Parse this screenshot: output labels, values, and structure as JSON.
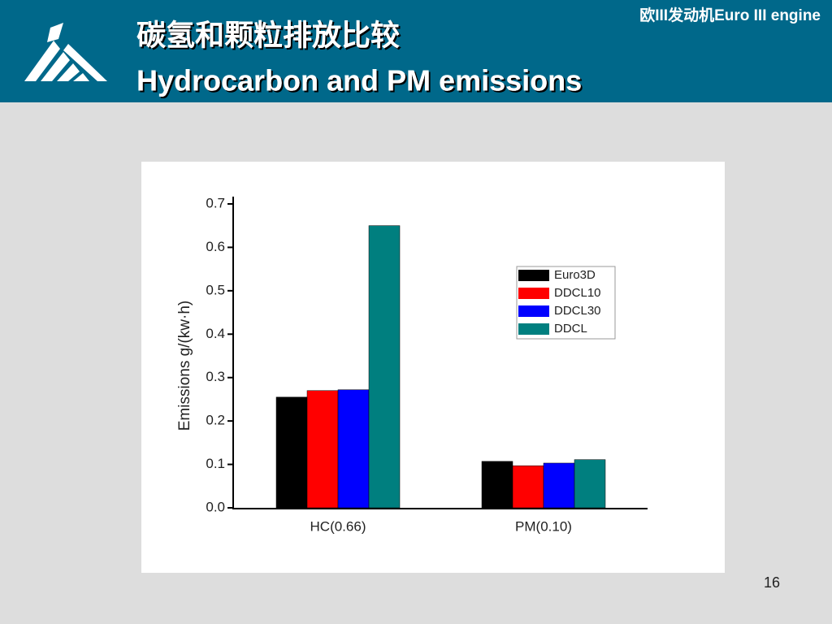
{
  "slide": {
    "corner": "欧III发动机Euro III engine",
    "title_cn": "碳氢和颗粒排放比较",
    "title_en": "Hydrocarbon and PM emissions",
    "page": "16"
  },
  "chart_data": {
    "type": "bar",
    "ylabel": "Emissions   g/(kw·h)",
    "categories": [
      "HC(0.66)",
      "PM(0.10)"
    ],
    "series": [
      {
        "name": "Euro3D",
        "color": "#000000",
        "values": [
          0.255,
          0.107
        ]
      },
      {
        "name": "DDCL10",
        "color": "#ff0000",
        "values": [
          0.27,
          0.097
        ]
      },
      {
        "name": "DDCL30",
        "color": "#0000ff",
        "values": [
          0.272,
          0.103
        ]
      },
      {
        "name": "DDCL",
        "color": "#007f7f",
        "values": [
          0.65,
          0.111
        ]
      }
    ],
    "ylim": [
      0,
      0.7
    ],
    "yticks": [
      {
        "value": 0,
        "label": "0.0"
      },
      0.1,
      0.2,
      0.3,
      0.4,
      0.5,
      0.6,
      0.7
    ],
    "legend": "upper right"
  }
}
